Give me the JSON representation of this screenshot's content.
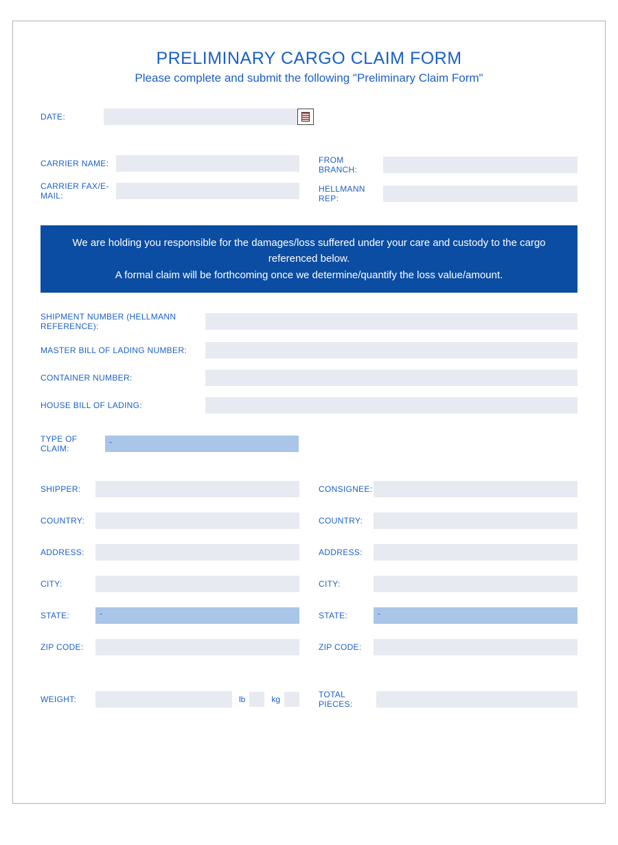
{
  "colors": {
    "blue": "#1a5fc9",
    "banner_bg": "#0b4da2",
    "field_bg": "#e8eaf2",
    "dropdown_bg": "#a9c5e8",
    "border": "#b0b0b0"
  },
  "header": {
    "title": "PRELIMINARY CARGO CLAIM FORM",
    "subtitle": "Please complete and submit the following \"Preliminary Claim Form\""
  },
  "date": {
    "label": "DATE:"
  },
  "carrier": {
    "name_label": "CARRIER NAME:",
    "fax_email_label": "CARRIER FAX/E-MAIL:",
    "from_branch_label": "FROM BRANCH:",
    "hellmann_rep_label": "HELLMANN REP:"
  },
  "banner": {
    "line1": "We are holding you responsible for the damages/loss suffered under your care and custody to the cargo referenced below.",
    "line2": "A formal claim will be forthcoming once we determine/quantify the loss value/amount."
  },
  "shipment": {
    "number_label": "SHIPMENT NUMBER (HELLMANN REFERENCE):",
    "mbl_label": "MASTER BILL OF LADING NUMBER:",
    "container_label": "CONTAINER NUMBER:",
    "hbl_label": "HOUSE BILL OF LADING:"
  },
  "type_of_claim": {
    "label": "TYPE OF CLAIM:",
    "value": "-"
  },
  "shipper": {
    "label": "SHIPPER:",
    "country_label": "COUNTRY:",
    "address_label": "ADDRESS:",
    "city_label": "CITY:",
    "state_label": "STATE:",
    "state_value": "-",
    "zip_label": "ZIP CODE:"
  },
  "consignee": {
    "label": "CONSIGNEE:",
    "country_label": "COUNTRY:",
    "address_label": "ADDRESS:",
    "city_label": "CITY:",
    "state_label": "STATE:",
    "state_value": "-",
    "zip_label": "ZIP CODE:"
  },
  "weight": {
    "label": "WEIGHT:",
    "lb_label": "lb",
    "kg_label": "kg"
  },
  "total_pieces": {
    "label": "TOTAL PIECES:"
  }
}
